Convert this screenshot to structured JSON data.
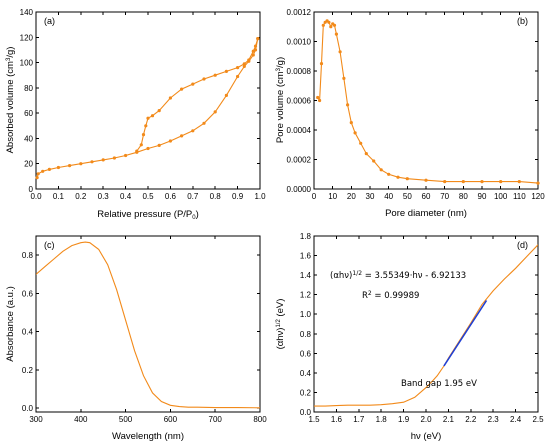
{
  "colors": {
    "series": "#f28a1a",
    "fit": "#1f3fd6"
  },
  "chart_data": [
    {
      "panel": "(a)",
      "type": "line",
      "xlabel_main": "Relative pressure (P/P",
      "xlabel_sub": "0",
      "xlabel_end": ")",
      "ylabel_main": "Absorbed volume (cm",
      "ylabel_sup": "3",
      "ylabel_end": "/g)",
      "xlim": [
        0.0,
        1.0
      ],
      "ylim": [
        0,
        140
      ],
      "xticks": [
        "0.0",
        "0.1",
        "0.2",
        "0.3",
        "0.4",
        "0.5",
        "0.6",
        "0.7",
        "0.8",
        "0.9",
        "1.0"
      ],
      "yticks": [
        "0",
        "20",
        "40",
        "60",
        "80",
        "100",
        "120",
        "140"
      ],
      "markers": true,
      "series": [
        {
          "x": [
            0.005,
            0.01,
            0.03,
            0.06,
            0.1,
            0.15,
            0.2,
            0.25,
            0.3,
            0.35,
            0.4,
            0.45,
            0.5,
            0.55,
            0.6,
            0.65,
            0.7,
            0.75,
            0.8,
            0.85,
            0.9,
            0.93,
            0.95,
            0.97,
            0.98,
            0.99
          ],
          "y": [
            9,
            12,
            14,
            15.5,
            17,
            18.5,
            20,
            21.5,
            23,
            24.5,
            26.5,
            29,
            32,
            34.5,
            38,
            42,
            46,
            52,
            61,
            74,
            89,
            97,
            101,
            106,
            110,
            119
          ]
        },
        {
          "x": [
            0.99,
            0.98,
            0.97,
            0.95,
            0.93,
            0.9,
            0.85,
            0.8,
            0.75,
            0.7,
            0.65,
            0.6,
            0.55,
            0.52,
            0.5,
            0.49,
            0.48,
            0.47,
            0.45
          ],
          "y": [
            119,
            113,
            109,
            102,
            99,
            96,
            93,
            90,
            87,
            83,
            79,
            72,
            62,
            58,
            56,
            50,
            43,
            35,
            30
          ]
        }
      ]
    },
    {
      "panel": "(b)",
      "type": "line",
      "xlabel": "Pore diameter (nm)",
      "ylabel": "Pore volume (cm3/g)",
      "xlim": [
        0,
        120
      ],
      "ylim": [
        0,
        0.0012
      ],
      "xticks": [
        "0",
        "10",
        "20",
        "30",
        "40",
        "50",
        "60",
        "70",
        "80",
        "90",
        "100",
        "110",
        "120"
      ],
      "yticks": [
        "0.0000",
        "0.0002",
        "0.0004",
        "0.0006",
        "0.0008",
        "0.0010",
        "0.0012"
      ],
      "markers": true,
      "series": [
        {
          "x": [
            2,
            3,
            4,
            5,
            6,
            7,
            8,
            9,
            10,
            11,
            12,
            14,
            16,
            18,
            20,
            22,
            25,
            28,
            32,
            36,
            40,
            45,
            50,
            60,
            70,
            80,
            90,
            100,
            110,
            120
          ],
          "y": [
            0.00062,
            0.0006,
            0.00085,
            0.00111,
            0.00113,
            0.00114,
            0.00113,
            0.0011,
            0.00112,
            0.00111,
            0.00105,
            0.00093,
            0.00075,
            0.00057,
            0.00045,
            0.00038,
            0.00031,
            0.00024,
            0.00019,
            0.00013,
            0.0001,
            8e-05,
            7e-05,
            6e-05,
            5e-05,
            5e-05,
            5e-05,
            5e-05,
            5e-05,
            4e-05
          ]
        }
      ]
    },
    {
      "panel": "(c)",
      "type": "line",
      "xlabel": "Wavelength (nm)",
      "ylabel": "Absorbance (a.u.)",
      "xlim": [
        300,
        800
      ],
      "ylim": [
        -0.02,
        0.9
      ],
      "xticks": [
        "300",
        "400",
        "500",
        "600",
        "700",
        "800"
      ],
      "yticks": [
        "0.0",
        "0.2",
        "0.4",
        "0.6",
        "0.8"
      ],
      "markers": false,
      "series": [
        {
          "x": [
            300,
            320,
            340,
            360,
            380,
            400,
            410,
            420,
            440,
            460,
            480,
            500,
            520,
            540,
            560,
            580,
            600,
            620,
            640,
            660,
            700,
            750,
            800
          ],
          "y": [
            0.7,
            0.74,
            0.78,
            0.82,
            0.85,
            0.865,
            0.868,
            0.865,
            0.83,
            0.75,
            0.62,
            0.46,
            0.3,
            0.17,
            0.08,
            0.035,
            0.015,
            0.008,
            0.005,
            0.005,
            0.003,
            0.003,
            0.002
          ]
        }
      ]
    },
    {
      "panel": "(d)",
      "type": "line",
      "xlabel": "hν (eV)",
      "ylabel": "(αhν)1/2 (eV)",
      "xlim": [
        1.5,
        2.5
      ],
      "ylim": [
        0.0,
        1.8
      ],
      "xticks": [
        "1.5",
        "1.6",
        "1.7",
        "1.8",
        "1.9",
        "2.0",
        "2.1",
        "2.2",
        "2.3",
        "2.4",
        "2.5"
      ],
      "yticks": [
        "0.0",
        "0.2",
        "0.4",
        "0.6",
        "0.8",
        "1.0",
        "1.2",
        "1.4",
        "1.6",
        "1.8"
      ],
      "markers": false,
      "equation_main": "(αhν)",
      "equation_sup": "1/2",
      "equation_rest": " = 3.55349·hν - 6.92133",
      "r2_main": "R",
      "r2_sup": "2",
      "r2_rest": " = 0.99989",
      "annotation": "Band gap 1.95 eV",
      "series": [
        {
          "name": "data",
          "x": [
            1.5,
            1.55,
            1.6,
            1.65,
            1.7,
            1.75,
            1.8,
            1.85,
            1.9,
            1.95,
            2.0,
            2.03,
            2.05,
            2.08,
            2.1,
            2.15,
            2.2,
            2.25,
            2.3,
            2.35,
            2.4,
            2.45,
            2.5
          ],
          "y": [
            0.06,
            0.06,
            0.065,
            0.07,
            0.07,
            0.07,
            0.075,
            0.085,
            0.1,
            0.15,
            0.25,
            0.32,
            0.37,
            0.47,
            0.55,
            0.73,
            0.91,
            1.1,
            1.24,
            1.36,
            1.47,
            1.59,
            1.71
          ]
        },
        {
          "name": "fit",
          "x": [
            2.08,
            2.27
          ],
          "y": [
            0.47,
            1.14
          ]
        }
      ]
    }
  ]
}
